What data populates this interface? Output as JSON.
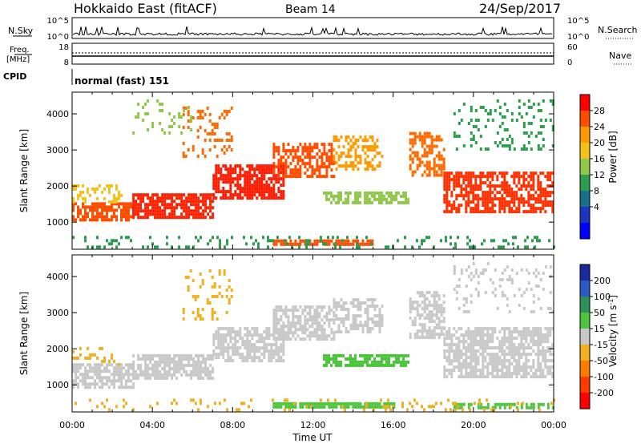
{
  "header": {
    "station": "Hokkaido East (fitACF)",
    "beam": "Beam 14",
    "date": "24/Sep/2017"
  },
  "top_panels": {
    "nsky_label": "N.Sky",
    "nsky_ticks_left": [
      "10^5",
      "10^0"
    ],
    "nsky_ticks_right": [
      "10^5",
      "10^0"
    ],
    "nsearch_label": "N.Search",
    "freq_label_1": "Freq.",
    "freq_label_2": "[MHz]",
    "freq_ticks_left": [
      "18",
      "8"
    ],
    "freq_ticks_right": [
      "60",
      "0"
    ],
    "nave_label": "Nave",
    "cpid_label": "CPID",
    "cpid_text": "normal (fast) 151"
  },
  "chart_data": [
    {
      "type": "heatmap",
      "name": "power",
      "ylabel": "Slant Range [km]",
      "yticks": [
        "1000",
        "2000",
        "3000",
        "4000"
      ],
      "ylim": [
        250,
        4600
      ],
      "xlim_hours": [
        0,
        24
      ],
      "colorbar": {
        "label": "Power [dB]",
        "ticks": [
          "28",
          "24",
          "20",
          "16",
          "12",
          "8",
          "4"
        ],
        "colors": [
          "#ff0000",
          "#ff4d00",
          "#ff9a00",
          "#f2c21c",
          "#90c94a",
          "#2e9c4e",
          "#1a6f8a",
          "#1b35c0",
          "#0000ff"
        ]
      }
    },
    {
      "type": "heatmap",
      "name": "velocity",
      "ylabel": "Slant Range [km]",
      "yticks": [
        "1000",
        "2000",
        "3000",
        "4000"
      ],
      "ylim": [
        250,
        4600
      ],
      "xlim_hours": [
        0,
        24
      ],
      "colorbar": {
        "label": "Velocity [m s",
        "label_sup": "-1",
        "label_end": "]",
        "ticks": [
          "200",
          "100",
          "50",
          "15",
          "-15",
          "-50",
          "-100",
          "-200"
        ],
        "colors": [
          "#1a2a9c",
          "#2a5ac4",
          "#2f8f5a",
          "#4cc43c",
          "#c8c8c8",
          "#f0b020",
          "#ff7a00",
          "#ff3a00",
          "#ff0000"
        ]
      }
    }
  ],
  "xaxis": {
    "ticks": [
      "00:00",
      "04:00",
      "08:00",
      "12:00",
      "16:00",
      "20:00",
      "00:00"
    ],
    "label": "Time UT"
  },
  "bands": {
    "power": [
      {
        "t0": 0.0,
        "t1": 3.0,
        "r0": 1050,
        "r1": 1550,
        "color": "#ff4d00",
        "d": 0.7
      },
      {
        "t0": 0.0,
        "t1": 2.5,
        "r0": 1550,
        "r1": 2050,
        "color": "#f2c21c",
        "d": 0.35
      },
      {
        "t0": 3.0,
        "t1": 7.0,
        "r0": 1150,
        "r1": 1800,
        "color": "#ff2000",
        "d": 0.8
      },
      {
        "t0": 7.0,
        "t1": 10.5,
        "r0": 1700,
        "r1": 2600,
        "color": "#ff1a00",
        "d": 0.75
      },
      {
        "t0": 10.0,
        "t1": 13.0,
        "r0": 2300,
        "r1": 3200,
        "color": "#ff4d00",
        "d": 0.6
      },
      {
        "t0": 13.0,
        "t1": 15.5,
        "r0": 2500,
        "r1": 3400,
        "color": "#ff9a00",
        "d": 0.45
      },
      {
        "t0": 12.5,
        "t1": 16.8,
        "r0": 1500,
        "r1": 1850,
        "color": "#90c94a",
        "d": 0.7
      },
      {
        "t0": 16.8,
        "t1": 18.5,
        "r0": 2300,
        "r1": 3500,
        "color": "#ff6a00",
        "d": 0.55
      },
      {
        "t0": 18.5,
        "t1": 24.0,
        "r0": 1300,
        "r1": 2400,
        "color": "#ff3000",
        "d": 0.7
      },
      {
        "t0": 19.0,
        "t1": 24.0,
        "r0": 3000,
        "r1": 4400,
        "color": "#2e9c4e",
        "d": 0.2
      },
      {
        "t0": 10.0,
        "t1": 15.0,
        "r0": 380,
        "r1": 520,
        "color": "#ff4d00",
        "d": 0.85
      },
      {
        "t0": 0.0,
        "t1": 24.0,
        "r0": 300,
        "r1": 620,
        "color": "#2e9c4e",
        "d": 0.18
      },
      {
        "t0": 5.5,
        "t1": 8.0,
        "r0": 2800,
        "r1": 4200,
        "color": "#ff6a00",
        "d": 0.2
      },
      {
        "t0": 3.0,
        "t1": 6.0,
        "r0": 3500,
        "r1": 4400,
        "color": "#90c94a",
        "d": 0.12
      }
    ],
    "velocity": [
      {
        "t0": 0.0,
        "t1": 3.0,
        "r0": 950,
        "r1": 1600,
        "color": "#c8c8c8",
        "d": 0.75
      },
      {
        "t0": 0.0,
        "t1": 2.5,
        "r0": 1600,
        "r1": 2050,
        "color": "#f0b020",
        "d": 0.2
      },
      {
        "t0": 3.0,
        "t1": 7.0,
        "r0": 1200,
        "r1": 1850,
        "color": "#c8c8c8",
        "d": 0.75
      },
      {
        "t0": 7.0,
        "t1": 10.5,
        "r0": 1700,
        "r1": 2600,
        "color": "#c8c8c8",
        "d": 0.7
      },
      {
        "t0": 10.0,
        "t1": 13.0,
        "r0": 2300,
        "r1": 3200,
        "color": "#c8c8c8",
        "d": 0.65
      },
      {
        "t0": 13.0,
        "t1": 15.5,
        "r0": 2500,
        "r1": 3400,
        "color": "#c8c8c8",
        "d": 0.55
      },
      {
        "t0": 12.5,
        "t1": 16.8,
        "r0": 1500,
        "r1": 1850,
        "color": "#4cc43c",
        "d": 0.75
      },
      {
        "t0": 16.8,
        "t1": 18.5,
        "r0": 2300,
        "r1": 3600,
        "color": "#c8c8c8",
        "d": 0.6
      },
      {
        "t0": 18.5,
        "t1": 24.0,
        "r0": 1200,
        "r1": 2600,
        "color": "#c8c8c8",
        "d": 0.7
      },
      {
        "t0": 10.0,
        "t1": 16.0,
        "r0": 380,
        "r1": 520,
        "color": "#4cc43c",
        "d": 0.9
      },
      {
        "t0": 19.0,
        "t1": 24.0,
        "r0": 380,
        "r1": 500,
        "color": "#4cc43c",
        "d": 0.6
      },
      {
        "t0": 0.0,
        "t1": 24.0,
        "r0": 300,
        "r1": 620,
        "color": "#f0b020",
        "d": 0.15
      },
      {
        "t0": 5.5,
        "t1": 8.0,
        "r0": 2800,
        "r1": 4200,
        "color": "#f0b020",
        "d": 0.15
      },
      {
        "t0": 19.0,
        "t1": 24.0,
        "r0": 3000,
        "r1": 4400,
        "color": "#c8c8c8",
        "d": 0.15
      }
    ]
  }
}
